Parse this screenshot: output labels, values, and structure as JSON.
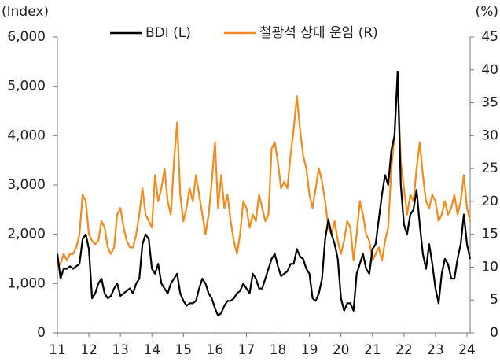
{
  "chart_data": {
    "type": "line",
    "y_label": "(Index)",
    "y2_label": "(%)",
    "x": [
      11.0,
      11.1,
      11.2,
      11.3,
      11.4,
      11.5,
      11.6,
      11.7,
      11.8,
      11.9,
      12.0,
      12.1,
      12.2,
      12.3,
      12.4,
      12.5,
      12.6,
      12.7,
      12.8,
      12.9,
      13.0,
      13.1,
      13.2,
      13.3,
      13.4,
      13.5,
      13.6,
      13.7,
      13.8,
      13.9,
      14.0,
      14.1,
      14.2,
      14.3,
      14.4,
      14.5,
      14.6,
      14.7,
      14.8,
      14.9,
      15.0,
      15.1,
      15.2,
      15.3,
      15.4,
      15.5,
      15.6,
      15.7,
      15.8,
      15.9,
      16.0,
      16.1,
      16.2,
      16.3,
      16.4,
      16.5,
      16.6,
      16.7,
      16.8,
      16.9,
      17.0,
      17.1,
      17.2,
      17.3,
      17.4,
      17.5,
      17.6,
      17.7,
      17.8,
      17.9,
      18.0,
      18.1,
      18.2,
      18.3,
      18.4,
      18.5,
      18.6,
      18.7,
      18.8,
      18.9,
      19.0,
      19.1,
      19.2,
      19.3,
      19.4,
      19.5,
      19.6,
      19.7,
      19.8,
      19.9,
      20.0,
      20.1,
      20.2,
      20.3,
      20.4,
      20.5,
      20.6,
      20.7,
      20.8,
      20.9,
      21.0,
      21.1,
      21.2,
      21.3,
      21.4,
      21.5,
      21.6,
      21.7,
      21.8,
      21.9,
      22.0,
      22.1,
      22.2,
      22.3,
      22.4,
      22.5,
      22.6,
      22.7,
      22.8,
      22.9,
      23.0,
      23.1,
      23.2,
      23.3,
      23.4,
      23.5,
      23.6,
      23.7,
      23.8,
      23.9,
      24.0,
      24.1
    ],
    "series": [
      {
        "name": "BDI (L)",
        "color": "#000000",
        "axis": "y",
        "values": [
          1600,
          1100,
          1300,
          1300,
          1350,
          1300,
          1350,
          1400,
          1900,
          2000,
          1700,
          700,
          800,
          1000,
          1100,
          800,
          700,
          750,
          900,
          1000,
          750,
          800,
          850,
          900,
          800,
          1000,
          1100,
          1800,
          2000,
          1900,
          1300,
          1200,
          1400,
          1000,
          900,
          800,
          1000,
          1100,
          1200,
          800,
          650,
          550,
          600,
          600,
          650,
          900,
          1100,
          1000,
          800,
          700,
          500,
          350,
          400,
          550,
          650,
          650,
          700,
          800,
          850,
          1000,
          900,
          800,
          1200,
          1100,
          900,
          900,
          1100,
          1300,
          1500,
          1600,
          1350,
          1150,
          1200,
          1250,
          1400,
          1400,
          1700,
          1550,
          1500,
          1300,
          1200,
          700,
          650,
          800,
          1100,
          1900,
          2300,
          2000,
          1800,
          1500,
          700,
          450,
          600,
          600,
          450,
          1200,
          1400,
          1600,
          1300,
          1200,
          1700,
          1800,
          2300,
          2800,
          3200,
          3000,
          3700,
          4000,
          5300,
          3000,
          2200,
          2000,
          2400,
          2500,
          2900,
          2200,
          1600,
          1300,
          1800,
          1400,
          900,
          600,
          1200,
          1500,
          1400,
          1100,
          1100,
          1500,
          1800,
          2400,
          1800,
          1500
        ]
      },
      {
        "name": "철광석 상대 운임 (R)",
        "color": "#f28a1e",
        "axis": "y2",
        "values": [
          10,
          10.5,
          12,
          11,
          12,
          12,
          13,
          15,
          21,
          20,
          15,
          14,
          13.5,
          14,
          17,
          16,
          13,
          12,
          13,
          18,
          19,
          16,
          14,
          13,
          13,
          15,
          18,
          22,
          18,
          17,
          16,
          24,
          20,
          22,
          25,
          20,
          18,
          26,
          32,
          21,
          17,
          19,
          22,
          20,
          24,
          21,
          18,
          15,
          18,
          23,
          29,
          19,
          24,
          19,
          21,
          17,
          14,
          12,
          15,
          20,
          19,
          16,
          18,
          17,
          21,
          19,
          17,
          18,
          28,
          29,
          26,
          22,
          23,
          22,
          27,
          31,
          36,
          31,
          27,
          25,
          21,
          19,
          22,
          25,
          23,
          20,
          16,
          15,
          17,
          14,
          12,
          14,
          17,
          16,
          11,
          15,
          20,
          18,
          15,
          14,
          11,
          12,
          13,
          11,
          14,
          16,
          25,
          30,
          39,
          26,
          22,
          18,
          21,
          20,
          25,
          29,
          24,
          20,
          19,
          21,
          20,
          17,
          18,
          20,
          18,
          19,
          21,
          18,
          20,
          24,
          19,
          17
        ]
      }
    ],
    "xlim": [
      11,
      24.1
    ],
    "xticks": [
      11,
      12,
      13,
      14,
      15,
      16,
      17,
      18,
      19,
      20,
      21,
      22,
      23,
      24
    ],
    "ylim": [
      0,
      6000
    ],
    "yticks": [
      0,
      {
        "value": 1000,
        "label": "1,000"
      },
      {
        "value": 2000,
        "label": "2,000"
      },
      {
        "value": 3000,
        "label": "3,000"
      },
      {
        "value": 4000,
        "label": "4,000"
      },
      {
        "value": 5000,
        "label": "5,000"
      },
      {
        "value": 6000,
        "label": "6,000"
      }
    ],
    "y2lim": [
      0,
      45
    ],
    "y2ticks": [
      0,
      5,
      10,
      15,
      20,
      25,
      30,
      35,
      40,
      45
    ],
    "grid": false,
    "legend": "top"
  }
}
